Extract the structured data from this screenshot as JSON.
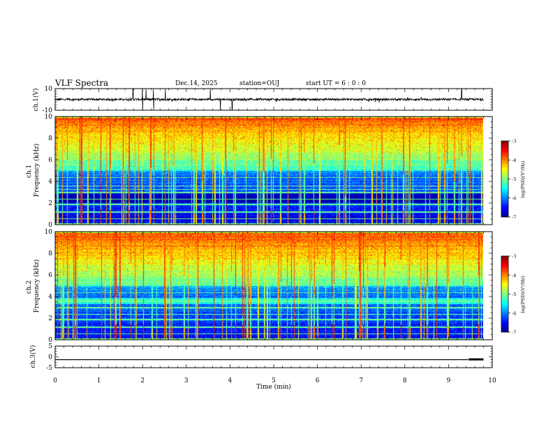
{
  "header": {
    "title": "VLF Spectra",
    "date": "Dec.14, 2025",
    "station": "station=OUJ",
    "start": "start  UT =   6 : 0  : 0"
  },
  "chart_data": [
    {
      "type": "line",
      "id": "ch1-waveform",
      "ylabel": "ch.1(V)",
      "ylim": [
        -10,
        10
      ],
      "yticks": [
        10,
        -10
      ],
      "xlim": [
        0,
        10
      ],
      "description_units": "V",
      "baseline": 0,
      "noise_amplitude": 1,
      "spike_times_min": [
        1.78,
        2.0,
        2.08,
        2.25,
        2.52,
        3.55,
        3.78,
        4.05,
        9.3
      ]
    },
    {
      "type": "heatmap",
      "id": "ch1-spectrogram",
      "ylabel": "ch.1\nFrequency (kHz)",
      "ylabel_lines": [
        "ch.1",
        "Frequency (kHz)"
      ],
      "ylim": [
        0,
        10
      ],
      "yticks": [
        0,
        2,
        4,
        6,
        8,
        10
      ],
      "xlim": [
        0,
        9.8
      ],
      "colorbar": {
        "label": "log(PSD)(V²/Hz)",
        "range": [
          -7,
          -3
        ],
        "ticks": [
          -3,
          -4,
          -5,
          -6,
          -7
        ]
      },
      "background_level_low": -6.6,
      "background_level_high": -5.4,
      "dark_band_khz": [
        2.0,
        3.0
      ],
      "narrowband_lines_khz": [
        0.6,
        1.2,
        1.9,
        2.4,
        3.0,
        3.3,
        3.6,
        4.4
      ],
      "sferic_count": 110
    },
    {
      "type": "heatmap",
      "id": "ch2-spectrogram",
      "ylabel_lines": [
        "ch.2",
        "Frequency (kHz)"
      ],
      "ylim": [
        0,
        10
      ],
      "yticks": [
        0,
        2,
        4,
        6,
        8,
        10
      ],
      "xlim": [
        0,
        9.8
      ],
      "colorbar": {
        "label": "log(PSD)(V²/Hz)",
        "range": [
          -7,
          -3
        ],
        "ticks": [
          -3,
          -4,
          -5,
          -6,
          -7
        ]
      },
      "background_level_low": -6.5,
      "background_level_high": -5.3,
      "emission_band_khz": [
        3.3,
        3.9
      ],
      "narrowband_lines_khz": [
        0.6,
        1.2,
        1.9,
        2.4,
        3.0,
        4.4
      ],
      "sferic_count": 110
    },
    {
      "type": "line",
      "id": "ch3-waveform",
      "ylabel": "ch.3(V)",
      "ylim": [
        -5,
        5
      ],
      "yticks": [
        5,
        0,
        -5
      ],
      "xlim": [
        0,
        10
      ],
      "x": [
        0,
        9.45,
        9.46,
        9.8
      ],
      "y": [
        -1.3,
        -1.3,
        -1.0,
        -1.0
      ]
    }
  ],
  "xaxis": {
    "label": "Time  (min)",
    "ticks": [
      "0",
      "1",
      "2",
      "3",
      "4",
      "5",
      "6",
      "7",
      "8",
      "9",
      "10"
    ],
    "range": [
      0,
      10
    ]
  }
}
